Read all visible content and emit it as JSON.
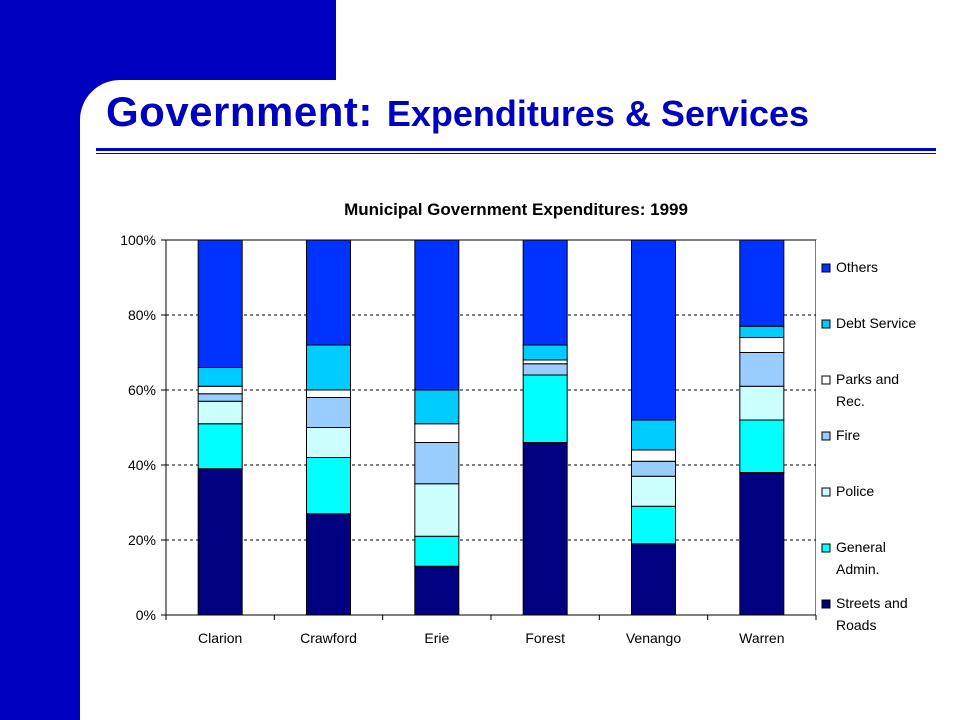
{
  "slide": {
    "title_main": "Government:",
    "title_sub": "Expenditures & Services"
  },
  "colors": {
    "brand": "#0000c0",
    "streets": "#000080",
    "general_admin": "#00ffff",
    "police": "#ccffff",
    "fire": "#99ccff",
    "parks": "#ffffff",
    "debt": "#00ccff",
    "others": "#0033ff"
  },
  "chart_data": {
    "type": "bar",
    "stacked": true,
    "title": "Municipal Government Expenditures: 1999",
    "categories": [
      "Clarion",
      "Crawford",
      "Erie",
      "Forest",
      "Venango",
      "Warren"
    ],
    "y_ticks": [
      "0%",
      "20%",
      "40%",
      "60%",
      "80%",
      "100%"
    ],
    "ylim": [
      0,
      100
    ],
    "grid": "dashed horizontal",
    "legend_position": "right",
    "series": [
      {
        "name": "Streets and Roads",
        "legend_lines": [
          "Streets and",
          "Roads"
        ],
        "color": "#000080",
        "values": [
          39,
          27,
          13,
          46,
          19,
          38
        ]
      },
      {
        "name": "General Admin.",
        "legend_lines": [
          "General",
          "Admin."
        ],
        "color": "#00ffff",
        "values": [
          12,
          15,
          8,
          18,
          10,
          14
        ]
      },
      {
        "name": "Police",
        "legend_lines": [
          "Police"
        ],
        "color": "#ccffff",
        "values": [
          6,
          8,
          14,
          0,
          8,
          9
        ]
      },
      {
        "name": "Fire",
        "legend_lines": [
          "Fire"
        ],
        "color": "#99ccff",
        "values": [
          2,
          8,
          11,
          3,
          4,
          9
        ]
      },
      {
        "name": "Parks and Rec.",
        "legend_lines": [
          "Parks and",
          "Rec."
        ],
        "color": "#ffffff",
        "values": [
          2,
          2,
          5,
          1,
          3,
          4
        ]
      },
      {
        "name": "Debt Service",
        "legend_lines": [
          "Debt Service"
        ],
        "color": "#00ccff",
        "values": [
          5,
          12,
          9,
          4,
          8,
          3
        ]
      },
      {
        "name": "Others",
        "legend_lines": [
          "Others"
        ],
        "color": "#0033ff",
        "values": [
          34,
          28,
          40,
          28,
          48,
          23
        ]
      }
    ]
  }
}
